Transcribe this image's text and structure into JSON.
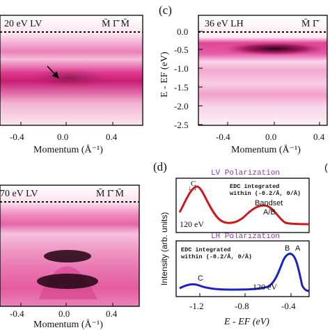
{
  "panel_tl": {
    "label": "20 eV LV",
    "sym": "M̄  Γ̄  M̄",
    "x_ticks": [
      "-0.4",
      "0.0",
      "0.4"
    ],
    "x_axis": "Momentum (Å⁻¹)"
  },
  "panel_c": {
    "letter": "(c)",
    "label": "36 eV LH",
    "sym": "M̄  Γ̄",
    "y_ticks": [
      "0.0",
      "-0.5",
      "-1.0",
      "-1.5",
      "-2.0",
      "-2.5"
    ],
    "y_axis": "E - EF (eV)",
    "x_ticks": [
      "-0.4",
      "0.0",
      "0.4"
    ],
    "x_axis": "Momentum (Å⁻¹)"
  },
  "panel_bl": {
    "label": "70 eV LV",
    "sym": "M̄  Γ̄  M̄",
    "x_ticks": [
      "-0.4",
      "0.0",
      "0.4"
    ],
    "x_axis": "Momentum (Å⁻¹)"
  },
  "panel_d": {
    "letter": "(d)",
    "lv_title": "LV Polarization",
    "lh_title": "LH Polarization",
    "edc_note_1": "EDC integrated",
    "edc_note_2": "within (-0.2/Å, 0/Å)",
    "bandset_1": "Bandset",
    "bandset_2": "A/B",
    "lv_energy": "120 eV",
    "lh_energy": "120 eV",
    "peak_c_top": "C",
    "peak_b": "B",
    "peak_a": "A",
    "peak_c_bottom": "C",
    "y_axis": "Intensity (arb. units)",
    "x_ticks": [
      "-1.2",
      "-0.8",
      "-0.4"
    ],
    "x_axis": "E - EF (eV)",
    "colors": {
      "lv": "#d0181c",
      "lh": "#1a23c0",
      "title": "#8b3a9e"
    }
  }
}
